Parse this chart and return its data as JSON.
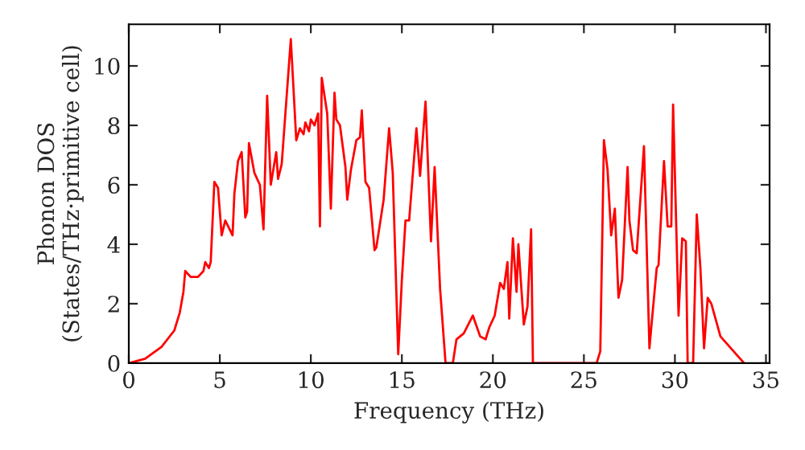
{
  "chart_data": {
    "type": "line",
    "xlabel": "Frequency (THz)",
    "ylabel": "Phonon DOS\n(States/THz·primitive cell)",
    "xlim": [
      0,
      35.2
    ],
    "ylim": [
      0,
      11.4
    ],
    "xticks": [
      0,
      5,
      10,
      15,
      20,
      25,
      30,
      35
    ],
    "yticks": [
      0,
      2,
      4,
      6,
      8,
      10
    ],
    "grid": false,
    "legend": false,
    "marker": "none",
    "line_style": "solid",
    "series": [
      {
        "color": "#ff0000",
        "x": [
          0,
          0.9,
          1.8,
          2.5,
          2.8,
          3.0,
          3.1,
          3.4,
          3.8,
          4.1,
          4.2,
          4.4,
          4.5,
          4.7,
          4.9,
          5.1,
          5.3,
          5.7,
          5.8,
          6.0,
          6.2,
          6.4,
          6.5,
          6.6,
          6.9,
          7.2,
          7.4,
          7.6,
          7.8,
          8.1,
          8.2,
          8.4,
          8.9,
          9.2,
          9.4,
          9.6,
          9.7,
          9.9,
          10.0,
          10.2,
          10.4,
          10.5,
          10.6,
          10.9,
          11.1,
          11.3,
          11.4,
          11.6,
          11.9,
          12.0,
          12.2,
          12.5,
          12.7,
          12.8,
          13.0,
          13.2,
          13.5,
          13.6,
          14.0,
          14.3,
          14.5,
          14.8,
          15.0,
          15.2,
          15.4,
          15.8,
          16.0,
          16.3,
          16.6,
          16.8,
          17.1,
          17.4,
          17.8,
          18.0,
          18.4,
          18.9,
          19.3,
          19.6,
          19.8,
          20.1,
          20.4,
          20.6,
          20.8,
          20.9,
          21.1,
          21.3,
          21.4,
          21.7,
          21.9,
          22.1,
          22.2,
          25.7,
          25.9,
          26.1,
          26.3,
          26.5,
          26.7,
          26.9,
          27.1,
          27.4,
          27.5,
          27.7,
          27.9,
          28.3,
          28.6,
          28.7,
          29.0,
          29.1,
          29.4,
          29.6,
          29.8,
          29.9,
          30.2,
          30.4,
          30.6,
          30.7,
          31.0,
          31.2,
          31.4,
          31.6,
          31.8,
          32.0,
          32.5,
          33.8
        ],
        "values": [
          0,
          0.15,
          0.55,
          1.1,
          1.7,
          2.4,
          3.1,
          2.9,
          2.9,
          3.1,
          3.4,
          3.2,
          3.4,
          6.1,
          5.9,
          4.3,
          4.8,
          4.3,
          5.7,
          6.8,
          7.1,
          4.9,
          5.1,
          7.4,
          6.4,
          6.0,
          4.5,
          9.0,
          6.0,
          7.1,
          6.2,
          6.7,
          10.9,
          7.5,
          7.9,
          7.7,
          8.1,
          7.8,
          8.2,
          8.0,
          8.4,
          4.6,
          9.6,
          8.4,
          5.2,
          9.1,
          8.2,
          8.0,
          6.6,
          5.5,
          6.5,
          7.5,
          7.6,
          8.5,
          6.1,
          5.9,
          3.8,
          3.9,
          5.5,
          7.9,
          6.4,
          0.3,
          2.8,
          4.8,
          4.8,
          7.9,
          6.3,
          8.8,
          4.1,
          6.6,
          2.5,
          0,
          0,
          0.8,
          1.0,
          1.6,
          0.9,
          0.8,
          1.2,
          1.6,
          2.7,
          2.5,
          3.4,
          1.5,
          4.2,
          2.4,
          4.0,
          1.3,
          1.9,
          4.5,
          0,
          0,
          0.4,
          7.5,
          6.5,
          4.3,
          5.2,
          2.2,
          2.8,
          6.6,
          4.8,
          3.8,
          3.7,
          7.3,
          0.5,
          1.2,
          3.2,
          3.3,
          6.8,
          4.6,
          4.6,
          8.7,
          1.6,
          4.2,
          4.1,
          0,
          0,
          5.0,
          3.2,
          0.5,
          2.2,
          2.0,
          0.9,
          0
        ]
      }
    ]
  }
}
